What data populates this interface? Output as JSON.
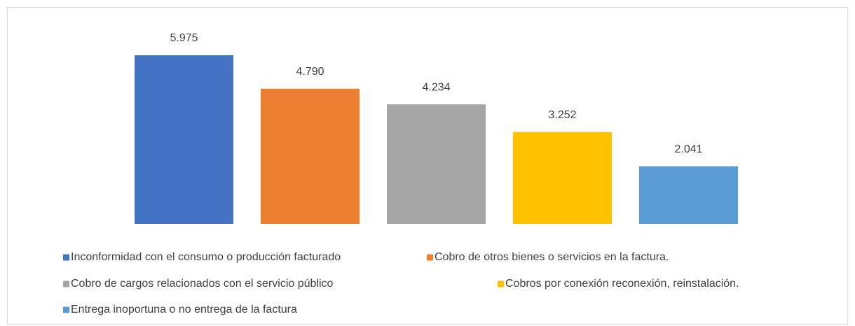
{
  "chart_data": {
    "type": "bar",
    "categories": [
      "Inconformidad con el consumo o producción facturado",
      "Cobro de otros bienes o servicios en la factura.",
      "Cobro de cargos relacionados con el servicio público",
      "Cobros por conexión reconexión, reinstalación.",
      "Entrega inoportuna o no entrega de la factura"
    ],
    "values": [
      5975,
      4790,
      4234,
      3252,
      2041
    ],
    "value_labels": [
      "5.975",
      "4.790",
      "4.234",
      "3.252",
      "2.041"
    ],
    "colors": [
      "#4472c4",
      "#ed7d31",
      "#a5a5a5",
      "#ffc000",
      "#5b9bd5"
    ]
  }
}
